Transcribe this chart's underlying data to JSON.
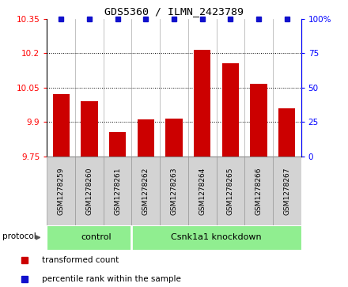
{
  "title": "GDS5360 / ILMN_2423789",
  "samples": [
    "GSM1278259",
    "GSM1278260",
    "GSM1278261",
    "GSM1278262",
    "GSM1278263",
    "GSM1278264",
    "GSM1278265",
    "GSM1278266",
    "GSM1278267"
  ],
  "bar_values": [
    10.02,
    9.99,
    9.855,
    9.91,
    9.915,
    10.215,
    10.155,
    10.065,
    9.96
  ],
  "percentile_values": [
    100,
    100,
    100,
    100,
    100,
    100,
    100,
    100,
    100
  ],
  "bar_color": "#CC0000",
  "percentile_color": "#1111CC",
  "ylim_left": [
    9.75,
    10.35
  ],
  "ylim_right": [
    0,
    100
  ],
  "yticks_left": [
    9.75,
    9.9,
    10.05,
    10.2,
    10.35
  ],
  "yticks_right": [
    0,
    25,
    50,
    75,
    100
  ],
  "ytick_labels_left": [
    "9.75",
    "9.9",
    "10.05",
    "10.2",
    "10.35"
  ],
  "ytick_labels_right": [
    "0",
    "25",
    "50",
    "75",
    "100%"
  ],
  "hlines": [
    9.9,
    10.05,
    10.2
  ],
  "control_count": 3,
  "knockdown_count": 6,
  "group_control_label": "control",
  "group_knockdown_label": "Csnk1a1 knockdown",
  "group_color": "#90EE90",
  "protocol_label": "protocol",
  "legend_transformed": "transformed count",
  "legend_percentile": "percentile rank within the sample",
  "bar_width": 0.6,
  "background_color": "#ffffff",
  "tickbox_color": "#D3D3D3",
  "tickbox_edge_color": "#999999"
}
